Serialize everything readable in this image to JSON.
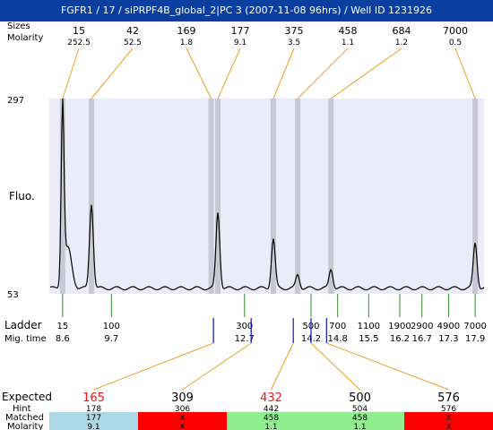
{
  "title": "FGFR1 / 17 / siPRPF4B_global_2|PC 3 (2007-11-08 96hrs) / Well ID 1231926",
  "labels": {
    "sizes": "Sizes",
    "molarity": "Molarity",
    "fluo": "Fluo.",
    "ladder": "Ladder",
    "mig_time": "Mig. time",
    "expected": "Expected",
    "hint": "Hint",
    "matched": "Matched",
    "molarity_bottom": "Molarity"
  },
  "colors": {
    "title_bg": "#0a3fa0",
    "plot_bg": "#ebebfa",
    "peak_band": "#c8c8d2",
    "connector": "#f0a020",
    "ladder_tick": "#2e8b2e",
    "sample_tick": "#1010c0",
    "expected_highlight": "#e02020",
    "matched_blue": "#add8e6",
    "matched_red": "#ff0000",
    "matched_green": "#90ee90"
  },
  "chart_data": {
    "type": "line",
    "title": "FGFR1 / 17 / siPRPF4B_global_2|PC 3 (2007-11-08 96hrs) / Well ID 1231926",
    "ylabel": "Fluo.",
    "ylim": [
      53,
      297
    ],
    "ytick_labels": [
      "297",
      "53"
    ],
    "xlim_mig_time": [
      8.3,
      18.1
    ],
    "peaks": [
      {
        "size": "15",
        "molarity": "252.5",
        "mig_time": 8.6,
        "height": 280
      },
      {
        "size": "42",
        "molarity": "52.5",
        "mig_time": 9.25,
        "height": 166
      },
      {
        "size": "169",
        "molarity": "1.8",
        "mig_time": 11.95,
        "height": 60
      },
      {
        "size": "177",
        "molarity": "9.1",
        "mig_time": 12.1,
        "height": 155
      },
      {
        "size": "375",
        "molarity": "3.5",
        "mig_time": 13.35,
        "height": 122
      },
      {
        "size": "458",
        "molarity": "1.1",
        "mig_time": 13.9,
        "height": 77
      },
      {
        "size": "684",
        "molarity": "1.2",
        "mig_time": 14.65,
        "height": 84
      },
      {
        "size": "7000",
        "molarity": "0.5",
        "mig_time": 17.9,
        "height": 117
      }
    ],
    "ladder": [
      {
        "size": "15",
        "mig_time": "8.6"
      },
      {
        "size": "100",
        "mig_time": "9.7"
      },
      {
        "size": "300",
        "mig_time": "12.7"
      },
      {
        "size": "500",
        "mig_time": "14.2"
      },
      {
        "size": "700",
        "mig_time": "14.8"
      },
      {
        "size": "1100",
        "mig_time": "15.5"
      },
      {
        "size": "1900",
        "mig_time": "16.2"
      },
      {
        "size": "2900",
        "mig_time": "16.7"
      },
      {
        "size": "4900",
        "mig_time": "17.3"
      },
      {
        "size": "7000",
        "mig_time": "17.9"
      }
    ],
    "expected": [
      {
        "expected": "165",
        "hint": "178",
        "matched": "177",
        "molarity": "9.1",
        "status": "matched",
        "highlight": true,
        "mig_time": 12.0
      },
      {
        "expected": "309",
        "hint": "306",
        "matched": "X",
        "molarity": "X",
        "status": "missing",
        "highlight": false,
        "mig_time": 12.85
      },
      {
        "expected": "432",
        "hint": "442",
        "matched": "458",
        "molarity": "1.1",
        "status": "ok",
        "highlight": true,
        "mig_time": 13.8
      },
      {
        "expected": "500",
        "hint": "504",
        "matched": "458",
        "molarity": "1.1",
        "status": "ok",
        "highlight": false,
        "mig_time": 14.2
      },
      {
        "expected": "576",
        "hint": "576",
        "matched": "X",
        "molarity": "X",
        "status": "missing",
        "highlight": false,
        "mig_time": 14.55
      }
    ]
  }
}
